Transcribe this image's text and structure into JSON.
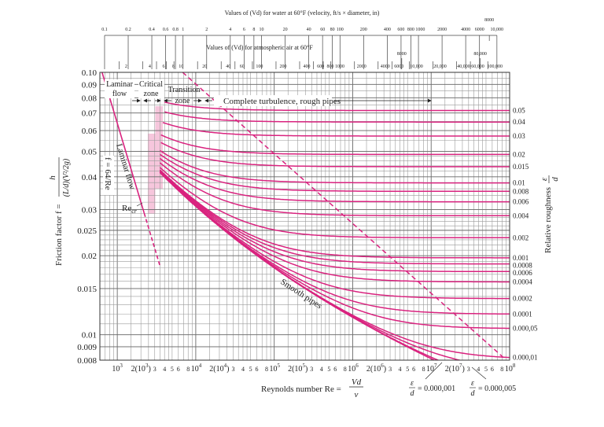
{
  "colors": {
    "curve": "#d9237f",
    "shade": "#f6c6dc",
    "grid": "#9a9a9a",
    "text": "#222222"
  },
  "chart_data": {
    "type": "line",
    "x_scale": "log",
    "y_scale": "log",
    "xlim": [
      600,
      100000000
    ],
    "ylim": [
      0.008,
      0.1
    ],
    "grid": true,
    "xlabel": "Reynolds number Re = Vd / ν",
    "xlabel_parts": {
      "main": "Reynolds number Re =",
      "num": "Vd",
      "den": "ν"
    },
    "ylabel_parts": {
      "main": "Friction factor f =",
      "num": "h",
      "den": "(L/d)(V²/2g)"
    },
    "right_label": "Relative roughness ε/d",
    "right_label_parts": {
      "main": "Relative roughness",
      "num": "ε",
      "den": "d"
    },
    "y_ticks": [
      "0.10",
      "0.09",
      "0.08",
      "0.07",
      "0.06",
      "0.05",
      "0.04",
      "0.03",
      "0.025",
      "0.02",
      "0.015",
      "0.01",
      "0.009",
      "0.008"
    ],
    "y_tick_values": [
      0.1,
      0.09,
      0.08,
      0.07,
      0.06,
      0.05,
      0.04,
      0.03,
      0.025,
      0.02,
      0.015,
      0.01,
      0.009,
      0.008
    ],
    "x_ticks": [
      {
        "re": 1000,
        "label": "10",
        "sup": "3"
      },
      {
        "re": 2000,
        "label": "2(10",
        "sup": "3",
        "close": ")"
      },
      {
        "re": 3000,
        "label": "3"
      },
      {
        "re": 4000,
        "label": "4"
      },
      {
        "re": 5000,
        "label": "5"
      },
      {
        "re": 6000,
        "label": "6"
      },
      {
        "re": 8000,
        "label": "8"
      },
      {
        "re": 10000,
        "label": "10",
        "sup": "4"
      },
      {
        "re": 20000,
        "label": "2(10",
        "sup": "4",
        "close": ")"
      },
      {
        "re": 30000,
        "label": "3"
      },
      {
        "re": 40000,
        "label": "4"
      },
      {
        "re": 50000,
        "label": "5"
      },
      {
        "re": 60000,
        "label": "6"
      },
      {
        "re": 80000,
        "label": "8"
      },
      {
        "re": 100000,
        "label": "10",
        "sup": "5"
      },
      {
        "re": 200000,
        "label": "2(10",
        "sup": "5",
        "close": ")"
      },
      {
        "re": 300000,
        "label": "3"
      },
      {
        "re": 400000,
        "label": "4"
      },
      {
        "re": 500000,
        "label": "5"
      },
      {
        "re": 600000,
        "label": "6"
      },
      {
        "re": 800000,
        "label": "8"
      },
      {
        "re": 1000000,
        "label": "10",
        "sup": "6"
      },
      {
        "re": 2000000,
        "label": "2(10",
        "sup": "6",
        "close": ")"
      },
      {
        "re": 3000000,
        "label": "3"
      },
      {
        "re": 4000000,
        "label": "4"
      },
      {
        "re": 5000000,
        "label": "5"
      },
      {
        "re": 6000000,
        "label": "6"
      },
      {
        "re": 8000000,
        "label": "8"
      },
      {
        "re": 10000000,
        "label": "10",
        "sup": "7"
      },
      {
        "re": 20000000,
        "label": "2(10",
        "sup": "7",
        "close": ")"
      },
      {
        "re": 30000000,
        "label": "3"
      },
      {
        "re": 40000000,
        "label": "4"
      },
      {
        "re": 50000000,
        "label": "5"
      },
      {
        "re": 60000000,
        "label": "6"
      },
      {
        "re": 80000000,
        "label": "8"
      },
      {
        "re": 100000000,
        "label": "10",
        "sup": "8"
      }
    ],
    "series": [
      {
        "name": "0.05",
        "roughness": 0.05,
        "re_start": 4000
      },
      {
        "name": "0.04",
        "roughness": 0.04,
        "re_start": 4000
      },
      {
        "name": "0.03",
        "roughness": 0.03,
        "re_start": 3800
      },
      {
        "name": "0.02",
        "roughness": 0.02,
        "re_start": 3600
      },
      {
        "name": "0.015",
        "roughness": 0.015,
        "re_start": 3600
      },
      {
        "name": "0.01",
        "roughness": 0.01,
        "re_start": 3500
      },
      {
        "name": "0.008",
        "roughness": 0.008,
        "re_start": 3500
      },
      {
        "name": "0.006",
        "roughness": 0.006,
        "re_start": 3500
      },
      {
        "name": "0.004",
        "roughness": 0.004,
        "re_start": 3500
      },
      {
        "name": "0.002",
        "roughness": 0.002,
        "re_start": 3500
      },
      {
        "name": "0.001",
        "roughness": 0.001,
        "re_start": 3500
      },
      {
        "name": "0.0008",
        "roughness": 0.0008,
        "re_start": 3500
      },
      {
        "name": "0.0006",
        "roughness": 0.0006,
        "re_start": 3500
      },
      {
        "name": "0.0004",
        "roughness": 0.0004,
        "re_start": 3500
      },
      {
        "name": "0.0002",
        "roughness": 0.0002,
        "re_start": 3500
      },
      {
        "name": "0.0001",
        "roughness": 0.0001,
        "re_start": 3500
      },
      {
        "name": "0.000,05",
        "roughness": 5e-05,
        "re_start": 3500
      },
      {
        "name": "0.000,01",
        "roughness": 1e-05,
        "re_start": 3500
      },
      {
        "name": "0.000,005",
        "roughness": 5e-06,
        "re_start": 3500,
        "bottom_label": true
      },
      {
        "name": "0.000,001",
        "roughness": 1e-06,
        "re_start": 3500,
        "bottom_label": true
      },
      {
        "name": "Smooth pipes",
        "roughness": 0,
        "re_start": 3500
      }
    ],
    "laminar": {
      "formula": "f = 64/Re",
      "solid_re": [
        600,
        2200
      ],
      "dashed_re": [
        2200,
        3500
      ]
    },
    "complete_turbulence_boundary": {
      "style": "dashed",
      "points": [
        [
          6800,
          0.1
        ],
        [
          83000000,
          0.0082
        ]
      ]
    },
    "critical_zone_shading": [
      {
        "re": [
          2450,
          3050
        ],
        "f": [
          0.0289,
          0.0584
        ]
      },
      {
        "re": [
          3050,
          3800
        ],
        "f": [
          0.036,
          0.0743
        ]
      }
    ],
    "annotations": {
      "laminar_flow_zone": [
        "Laminar",
        "flow"
      ],
      "critical_zone": [
        "Critical",
        "zone"
      ],
      "transition_zone": [
        "Transition",
        "zone"
      ],
      "complete_turbulence": "Complete turbulence, rough pipes",
      "laminar_flow_line": "Laminar flow",
      "laminar_eq_f": "f =",
      "laminar_eq_num": "64",
      "laminar_eq_den": "Re",
      "re_cr": "Re",
      "re_cr_sub": "cr",
      "smooth_pipes": "Smooth pipes",
      "eps1_num": "ε",
      "eps1_den": "d",
      "eps1_val": "= 0.000,001",
      "eps5_num": "ε",
      "eps5_den": "d",
      "eps5_val": "= 0.000,005"
    },
    "top_axes": {
      "water": {
        "title": "Values of (Vd) for water at 60°F (velocity, ft/s × diameter, in)",
        "re_per_unit": 6887,
        "ticks": [
          {
            "v": 0.1,
            "label": "0.1"
          },
          {
            "v": 0.2,
            "label": "0.2"
          },
          {
            "v": 0.4,
            "label": "0.4"
          },
          {
            "v": 0.6,
            "label": "0.6"
          },
          {
            "v": 0.8,
            "label": "0.8"
          },
          {
            "v": 1,
            "label": "1"
          },
          {
            "v": 2,
            "label": "2"
          },
          {
            "v": 4,
            "label": "4"
          },
          {
            "v": 6,
            "label": "6"
          },
          {
            "v": 8,
            "label": "8"
          },
          {
            "v": 10,
            "label": "10"
          },
          {
            "v": 20,
            "label": "20"
          },
          {
            "v": 40,
            "label": "40"
          },
          {
            "v": 60,
            "label": "60"
          },
          {
            "v": 80,
            "label": "80"
          },
          {
            "v": 100,
            "label": "100"
          },
          {
            "v": 200,
            "label": "200"
          },
          {
            "v": 400,
            "label": "400"
          },
          {
            "v": 600,
            "label": "600"
          },
          {
            "v": 800,
            "label": "800"
          },
          {
            "v": 1000,
            "label": "1000"
          },
          {
            "v": 2000,
            "label": "2000"
          },
          {
            "v": 4000,
            "label": "4000"
          },
          {
            "v": 6000,
            "label": "6000"
          },
          {
            "v": 8000,
            "label": "8000",
            "raised": true
          },
          {
            "v": 10000,
            "label": "10,000"
          }
        ]
      },
      "air": {
        "title": "Values of (Vd) for atmospheric air at 60°F",
        "re_per_unit": 527,
        "ticks": [
          {
            "v": 2,
            "label": "2"
          },
          {
            "v": 4,
            "label": "4"
          },
          {
            "v": 6,
            "label": "6"
          },
          {
            "v": 8,
            "label": "8"
          },
          {
            "v": 10,
            "label": "10"
          },
          {
            "v": 20,
            "label": "20"
          },
          {
            "v": 40,
            "label": "40"
          },
          {
            "v": 60,
            "label": "60"
          },
          {
            "v": 100,
            "label": "100"
          },
          {
            "v": 200,
            "label": "200"
          },
          {
            "v": 400,
            "label": "400"
          },
          {
            "v": 600,
            "label": "600"
          },
          {
            "v": 800,
            "label": "800"
          },
          {
            "v": 1000,
            "label": "1000"
          },
          {
            "v": 2000,
            "label": "2000"
          },
          {
            "v": 4000,
            "label": "4000"
          },
          {
            "v": 6000,
            "label": "6000"
          },
          {
            "v": 8000,
            "label": "8000",
            "raised": true
          },
          {
            "v": 10000,
            "label": "10,000"
          },
          {
            "v": 20000,
            "label": "20,000"
          },
          {
            "v": 40000,
            "label": "40,000"
          },
          {
            "v": 60000,
            "label": "60,000"
          },
          {
            "v": 80000,
            "label": "80,000",
            "raised": true
          },
          {
            "v": 100000,
            "label": "100,000"
          }
        ]
      }
    }
  }
}
